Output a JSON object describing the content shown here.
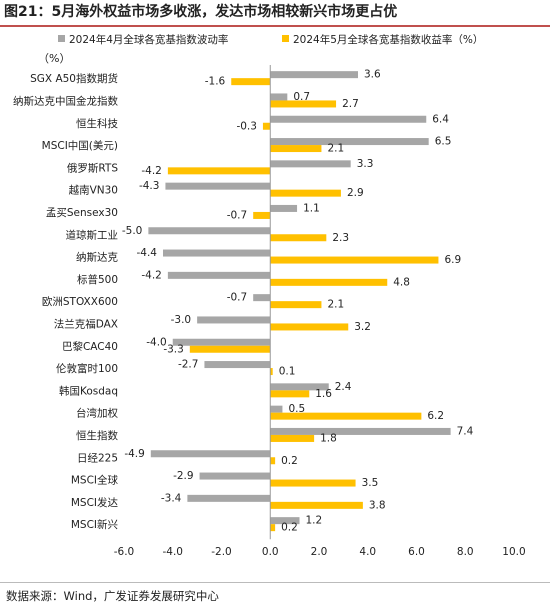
{
  "title": "图21：5月海外权益市场多收涨，发达市场相较新兴市场更占优",
  "unit": "（%）",
  "source": "数据来源：Wind，广发证券发展研究中心",
  "colors": {
    "series1": "#a6a6a6",
    "series2": "#ffc000",
    "title_rule": "#c0504d"
  },
  "chart_data": {
    "type": "bar",
    "orientation": "horizontal",
    "categories": [
      "SGX A50指数期货",
      "纳斯达克中国金龙指数",
      "恒生科技",
      "MSCI中国(美元)",
      "俄罗斯RTS",
      "越南VN30",
      "孟买Sensex30",
      "道琼斯工业",
      "纳斯达克",
      "标普500",
      "欧洲STOXX600",
      "法兰克福DAX",
      "巴黎CAC40",
      "伦敦富时100",
      "韩国Kosdaq",
      "台湾加权",
      "恒生指数",
      "日经225",
      "MSCI全球",
      "MSCI发达",
      "MSCI新兴"
    ],
    "series": [
      {
        "name": "2024年4月全球各宽基指数波动率",
        "values": [
          3.6,
          0.7,
          6.4,
          6.5,
          3.3,
          -4.3,
          1.1,
          -5.0,
          -4.4,
          -4.2,
          -0.7,
          -3.0,
          -4.0,
          -2.7,
          2.4,
          0.5,
          7.4,
          -4.9,
          -2.9,
          -3.4,
          1.2
        ]
      },
      {
        "name": "2024年5月全球各宽基指数收益率（%）",
        "values": [
          -1.6,
          2.7,
          -0.3,
          2.1,
          -4.2,
          2.9,
          -0.7,
          2.3,
          6.9,
          4.8,
          2.1,
          3.2,
          -3.3,
          0.1,
          1.6,
          6.2,
          1.8,
          0.2,
          3.5,
          3.8,
          0.2
        ]
      }
    ],
    "data_labels": [
      [
        "3.6",
        "0.7",
        "6.4",
        "6.5",
        "3.3",
        "-4.3",
        "1.1",
        "-5.0",
        "-4.4",
        "-4.2",
        "-0.7",
        "-3.0",
        "-4.0",
        "-2.7",
        "2.4",
        "0.5",
        "7.4",
        "-4.9",
        "-2.9",
        "-3.4",
        "1.2"
      ],
      [
        "-1.6",
        "2.7",
        "-0.3",
        "2.1",
        "-4.2",
        "2.9",
        "-0.7",
        "2.3",
        "6.9",
        "4.8",
        "2.1",
        "3.2",
        "-3.3",
        "0.1",
        "1.6",
        "6.2",
        "1.8",
        "0.2",
        "3.5",
        "3.8",
        "0.2"
      ]
    ],
    "xlim": [
      -6,
      10
    ],
    "xticks": [
      "-6.0",
      "-4.0",
      "-2.0",
      "0.0",
      "2.0",
      "4.0",
      "6.0",
      "8.0",
      "10.0"
    ],
    "xtick_values": [
      -6,
      -4,
      -2,
      0,
      2,
      4,
      6,
      8,
      10
    ],
    "grid": false,
    "legend_position": "top"
  }
}
